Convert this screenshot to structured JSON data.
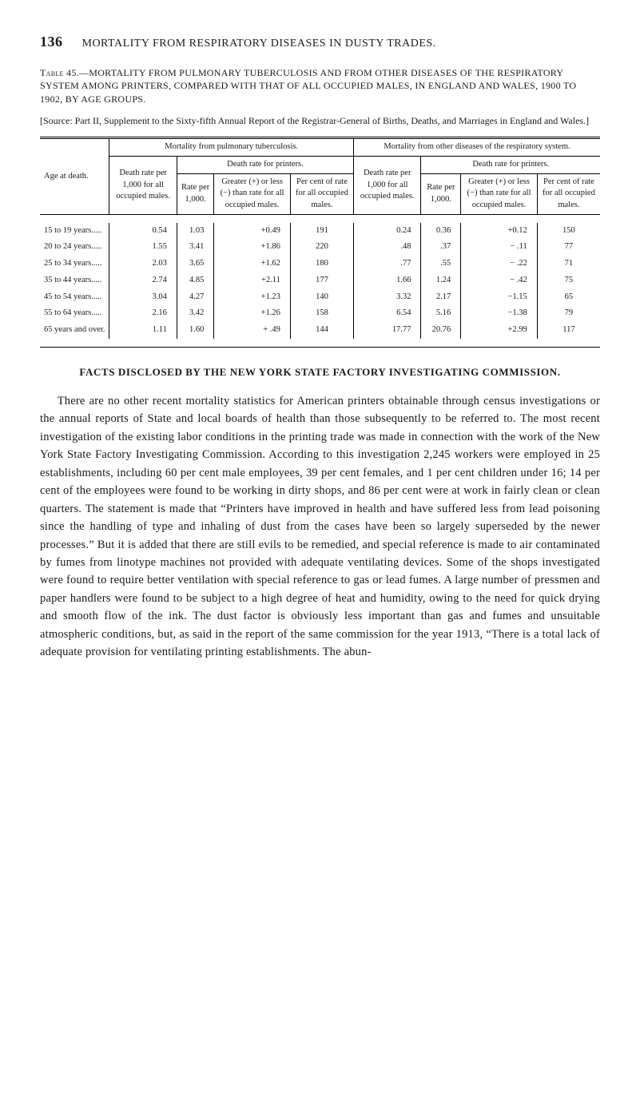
{
  "page": {
    "number": "136",
    "running_head": "MORTALITY FROM RESPIRATORY DISEASES IN DUSTY TRADES."
  },
  "table_caption": {
    "lead": "Table 45.",
    "text": "—MORTALITY FROM PULMONARY TUBERCULOSIS AND FROM OTHER DISEASES OF THE RESPIRATORY SYSTEM AMONG PRINTERS, COMPARED WITH THAT OF ALL OCCUPIED MALES, IN ENGLAND AND WALES, 1900 TO 1902, BY AGE GROUPS."
  },
  "source_note": "[Source: Part II, Supplement to the Sixty-fifth Annual Report of the Registrar-General of Births, Deaths, and Marriages in England and Wales.]",
  "table": {
    "col_age_label": "Age at death.",
    "groupA": "Mortality from pulmonary tuberculosis.",
    "groupB": "Mortality from other diseases of the respiratory system.",
    "sub_death_rate": "Death rate per 1,000 for all occupied males.",
    "sub_printers_header": "Death rate for printers.",
    "sub_rate_per": "Rate per 1,000.",
    "sub_greater_less": "Greater (+) or less (−) than rate for all occupied males.",
    "sub_percent": "Per cent of rate for all occupied males.",
    "rows": [
      {
        "age": "15 to 19 years.....",
        "a_dr": "0.54",
        "a_rp": "1.03",
        "a_gl": "+0.49",
        "a_pc": "191",
        "b_dr": "0.24",
        "b_rp": "0.36",
        "b_gl": "+0.12",
        "b_pc": "150"
      },
      {
        "age": "20 to 24 years.....",
        "a_dr": "1.55",
        "a_rp": "3.41",
        "a_gl": "+1.86",
        "a_pc": "220",
        "b_dr": ".48",
        "b_rp": ".37",
        "b_gl": "− .11",
        "b_pc": "77"
      },
      {
        "age": "25 to 34 years.....",
        "a_dr": "2.03",
        "a_rp": "3.65",
        "a_gl": "+1.62",
        "a_pc": "180",
        "b_dr": ".77",
        "b_rp": ".55",
        "b_gl": "− .22",
        "b_pc": "71"
      },
      {
        "age": "35 to 44 years.....",
        "a_dr": "2.74",
        "a_rp": "4.85",
        "a_gl": "+2.11",
        "a_pc": "177",
        "b_dr": "1.66",
        "b_rp": "1.24",
        "b_gl": "− .42",
        "b_pc": "75"
      },
      {
        "age": "45 to 54 years.....",
        "a_dr": "3.04",
        "a_rp": "4.27",
        "a_gl": "+1.23",
        "a_pc": "140",
        "b_dr": "3.32",
        "b_rp": "2.17",
        "b_gl": "−1.15",
        "b_pc": "65"
      },
      {
        "age": "55 to 64 years.....",
        "a_dr": "2.16",
        "a_rp": "3.42",
        "a_gl": "+1.26",
        "a_pc": "158",
        "b_dr": "6.54",
        "b_rp": "5.16",
        "b_gl": "−1.38",
        "b_pc": "79"
      },
      {
        "age": "65 years and over.",
        "a_dr": "1.11",
        "a_rp": "1.60",
        "a_gl": "+ .49",
        "a_pc": "144",
        "b_dr": "17.77",
        "b_rp": "20.76",
        "b_gl": "+2.99",
        "b_pc": "117"
      }
    ]
  },
  "facts_heading": "FACTS DISCLOSED BY THE NEW YORK STATE FACTORY INVESTIGATING COMMISSION.",
  "body_para": "There are no other recent mortality statistics for American printers obtainable through census investigations or the annual reports of State and local boards of health than those subsequently to be referred to. The most recent investigation of the existing labor conditions in the printing trade was made in connection with the work of the New York State Factory Investigating Commission. According to this investigation 2,245 workers were employed in 25 establishments, including 60 per cent male employees, 39 per cent females, and 1 per cent children under 16; 14 per cent of the employees were found to be working in dirty shops, and 86 per cent were at work in fairly clean or clean quarters. The statement is made that “Printers have improved in health and have suffered less from lead poisoning since the handling of type and inhaling of dust from the cases have been so largely superseded by the newer processes.” But it is added that there are still evils to be remedied, and special reference is made to air contaminated by fumes from linotype machines not provided with adequate ventilating devices. Some of the shops investigated were found to require better ventilation with special reference to gas or lead fumes. A large number of pressmen and paper handlers were found to be subject to a high degree of heat and humidity, owing to the need for quick drying and smooth flow of the ink. The dust factor is obviously less important than gas and fumes and unsuitable atmospheric conditions, but, as said in the report of the same commission for the year 1913, “There is a total lack of adequate provision for ventilating printing establishments. The abun-",
  "style": {
    "background_color": "#ffffff",
    "text_color": "#1a1a1a",
    "rule_color": "#000000",
    "body_font_size_pt": 14.5,
    "table_font_size_pt": 10.5,
    "caption_font_size_pt": 12
  }
}
